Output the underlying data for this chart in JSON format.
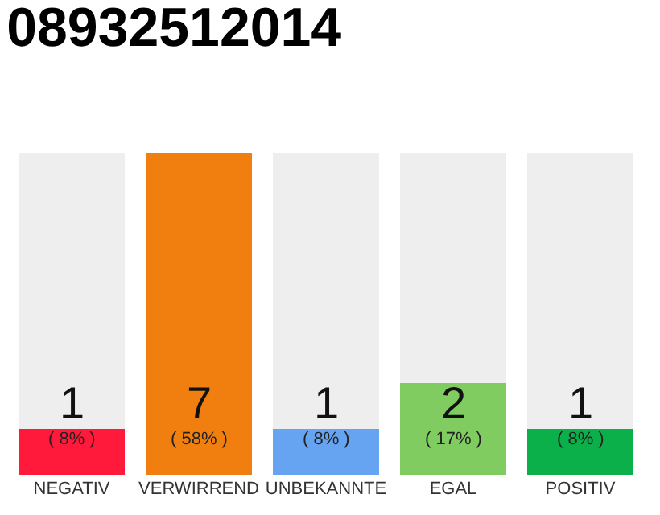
{
  "chart_data": {
    "type": "bar",
    "title": "08932512014",
    "categories": [
      "NEGATIV",
      "VERWIRREND",
      "UNBEKANNTE",
      "EGAL",
      "POSITIV"
    ],
    "stacked": true,
    "series": [
      {
        "colors": [
          "#ff1a3c",
          "#f07f0f",
          "#66a3f0",
          "#80cc60",
          "#0cb04a"
        ],
        "values": [
          1,
          7,
          1,
          2,
          1
        ],
        "data_labels": true
      },
      {
        "color": "#eeeeee",
        "values": [
          6,
          0,
          6,
          5,
          6
        ]
      }
    ],
    "annotations": [
      "( 8% )",
      "( 58% )",
      "( 8% )",
      "( 17% )",
      "( 8% )"
    ],
    "tick_labels": "x"
  }
}
